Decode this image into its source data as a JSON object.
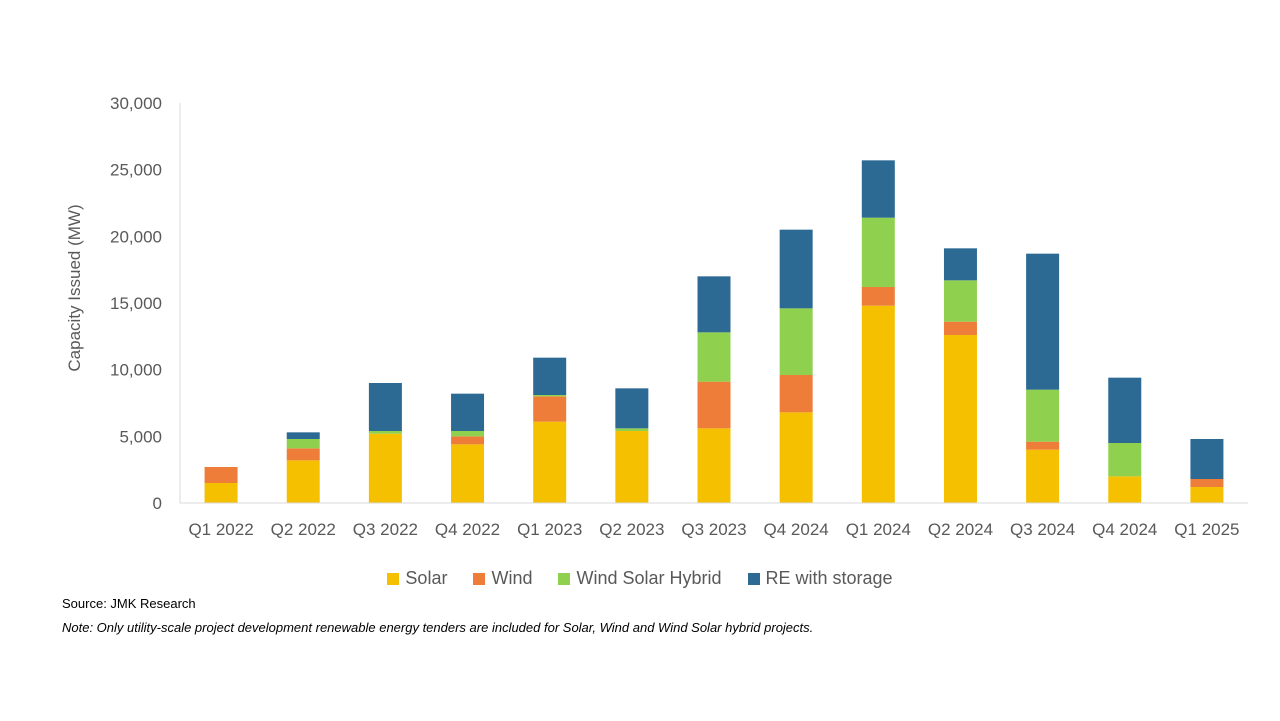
{
  "chart_data": {
    "type": "bar",
    "stacked": true,
    "title": "",
    "xlabel": "",
    "ylabel": "Capacity Issued (MW)",
    "ylim": [
      0,
      30000
    ],
    "yticks": [
      0,
      5000,
      10000,
      15000,
      20000,
      25000,
      30000
    ],
    "ytick_labels": [
      "0",
      "5,000",
      "10,000",
      "15,000",
      "20,000",
      "25,000",
      "30,000"
    ],
    "categories": [
      "Q1 2022",
      "Q2 2022",
      "Q3 2022",
      "Q4 2022",
      "Q1 2023",
      "Q2 2023",
      "Q3 2023",
      "Q4 2024",
      "Q1 2024",
      "Q2 2024",
      "Q3 2024",
      "Q4 2024",
      "Q1 2025"
    ],
    "series": [
      {
        "name": "Solar",
        "color": "#F5C000",
        "values": [
          1500,
          3200,
          5200,
          4400,
          6100,
          5400,
          5600,
          6800,
          14800,
          12600,
          4000,
          2000,
          1200
        ]
      },
      {
        "name": "Wind",
        "color": "#EE7D3A",
        "values": [
          1200,
          900,
          0,
          600,
          1900,
          0,
          3500,
          2800,
          1400,
          1000,
          600,
          0,
          600
        ]
      },
      {
        "name": "Wind Solar Hybrid",
        "color": "#8FD14F",
        "values": [
          0,
          700,
          200,
          400,
          100,
          200,
          3700,
          5000,
          5200,
          3100,
          3900,
          2500,
          0
        ]
      },
      {
        "name": "RE with storage",
        "color": "#2C6A94",
        "values": [
          0,
          500,
          3600,
          2800,
          2800,
          3000,
          4200,
          5900,
          4300,
          2400,
          10200,
          4900,
          3000
        ]
      }
    ],
    "legend_position": "bottom"
  },
  "footer": {
    "source": "Source: JMK Research",
    "note": "Note: Only utility-scale project development renewable energy tenders are included for Solar, Wind and Wind Solar hybrid projects."
  }
}
